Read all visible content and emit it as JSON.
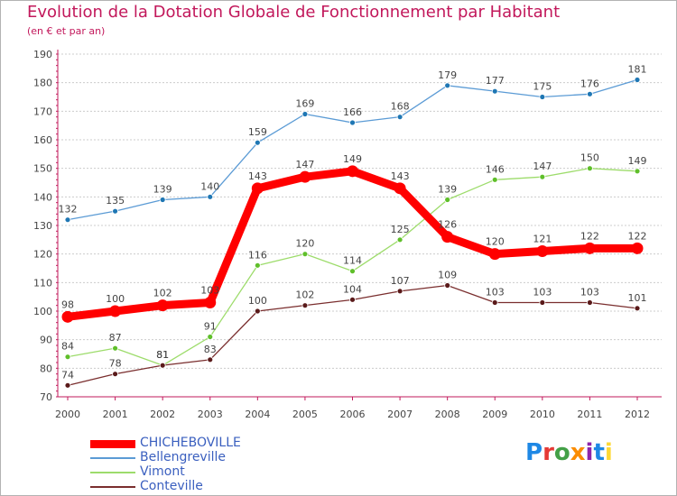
{
  "header": {
    "title": "Evolution de la Dotation Globale de Fonctionnement par Habitant",
    "subtitle": "(en € et par an)"
  },
  "logo": {
    "text": "Proxiti",
    "colors": [
      "#1e88e5",
      "#e53935",
      "#43a047",
      "#fb8c00",
      "#8e24aa",
      "#1e88e5",
      "#fdd835"
    ]
  },
  "colors": {
    "axis": "#c2185b",
    "grid": "#cccccc",
    "tick_text": "#444444",
    "label_text": "#444444"
  },
  "chart_data": {
    "type": "line",
    "title": "Evolution de la Dotation Globale de Fonctionnement par Habitant",
    "subtitle": "(en € et par an)",
    "xlabel": "",
    "ylabel": "",
    "x": [
      2000,
      2001,
      2002,
      2003,
      2004,
      2005,
      2006,
      2007,
      2008,
      2009,
      2010,
      2011,
      2012
    ],
    "ylim": [
      70,
      190
    ],
    "yticks": [
      70,
      80,
      90,
      100,
      110,
      120,
      130,
      140,
      150,
      160,
      170,
      180,
      190
    ],
    "grid": "horizontal",
    "legend_position": "bottom-left",
    "series": [
      {
        "name": "CHICHEBOVILLE",
        "color": "#ff0000",
        "values": [
          98,
          100,
          102,
          103,
          143,
          147,
          149,
          143,
          126,
          120,
          121,
          122,
          122
        ],
        "highlight": true
      },
      {
        "name": "Bellengreville",
        "color": "#5b9bd5",
        "marker_color": "#1f77b4",
        "values": [
          132,
          135,
          139,
          140,
          159,
          169,
          166,
          168,
          179,
          177,
          175,
          176,
          181
        ]
      },
      {
        "name": "Vimont",
        "color": "#9ddc6b",
        "marker_color": "#5fbf2a",
        "values": [
          84,
          87,
          81,
          91,
          116,
          120,
          114,
          125,
          139,
          146,
          147,
          150,
          149
        ]
      },
      {
        "name": "Conteville",
        "color": "#7a2e2e",
        "marker_color": "#5a1a1a",
        "values": [
          74,
          78,
          81,
          83,
          100,
          102,
          104,
          107,
          109,
          103,
          103,
          103,
          101
        ]
      }
    ]
  }
}
